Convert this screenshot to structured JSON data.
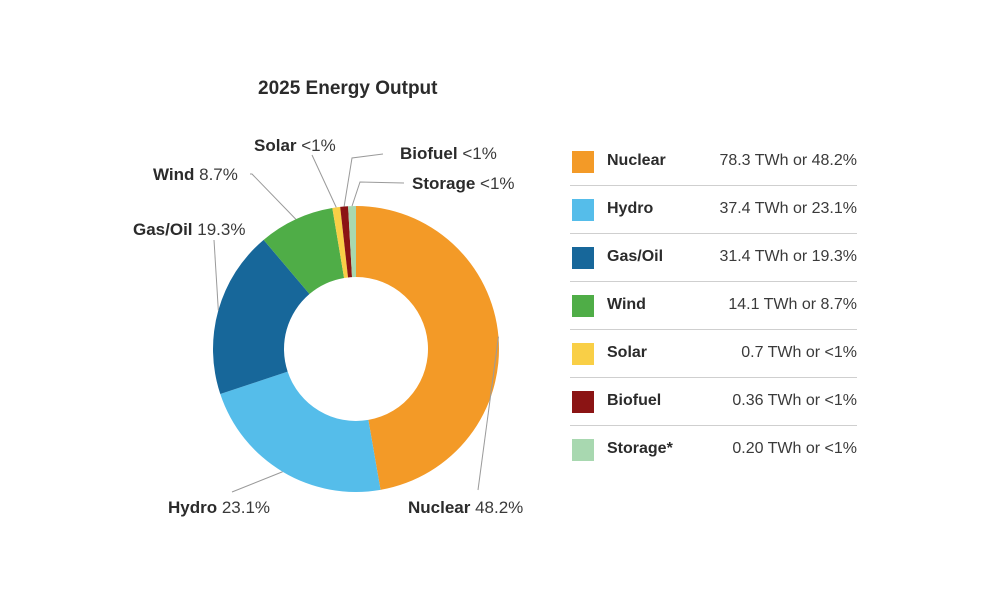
{
  "chart_data": {
    "type": "pie",
    "title": "2025 Energy Output",
    "slices": [
      {
        "name": "Nuclear",
        "percent": 48.2,
        "twh": 78.3,
        "color": "#f39a27",
        "label_name": "Nuclear",
        "label_value": "48.2%",
        "legend_name": "Nuclear",
        "legend_value": "78.3 TWh or 48.2%"
      },
      {
        "name": "Hydro",
        "percent": 23.1,
        "twh": 37.4,
        "color": "#55bdea",
        "label_name": "Hydro",
        "label_value": "23.1%",
        "legend_name": "Hydro",
        "legend_value": "37.4 TWh or 23.1%"
      },
      {
        "name": "Gas/Oil",
        "percent": 19.3,
        "twh": 31.4,
        "color": "#17679a",
        "label_name": "Gas/Oil",
        "label_value": "19.3%",
        "legend_name": "Gas/Oil",
        "legend_value": "31.4 TWh or 19.3%"
      },
      {
        "name": "Wind",
        "percent": 8.7,
        "twh": 14.1,
        "color": "#4fad47",
        "label_name": "Wind",
        "label_value": "8.7%",
        "legend_name": "Wind",
        "legend_value": "14.1 TWh or 8.7%"
      },
      {
        "name": "Solar",
        "percent": 0.43,
        "twh": 0.7,
        "color": "#f9cf46",
        "label_name": "Solar",
        "label_value": "<1%",
        "legend_name": "Solar",
        "legend_value": "0.7 TWh or <1%"
      },
      {
        "name": "Biofuel",
        "percent": 0.22,
        "twh": 0.36,
        "color": "#8b1414",
        "label_name": "Biofuel",
        "label_value": "<1%",
        "legend_name": "Biofuel",
        "legend_value": "0.36 TWh or <1%"
      },
      {
        "name": "Storage",
        "percent": 0.12,
        "twh": 0.2,
        "color": "#a8d8b0",
        "label_name": "Storage",
        "label_value": "<1%",
        "legend_name": "Storage*",
        "legend_value": "0.20 TWh or <1%"
      }
    ],
    "legend_placement": "right",
    "inner_hole": true
  }
}
